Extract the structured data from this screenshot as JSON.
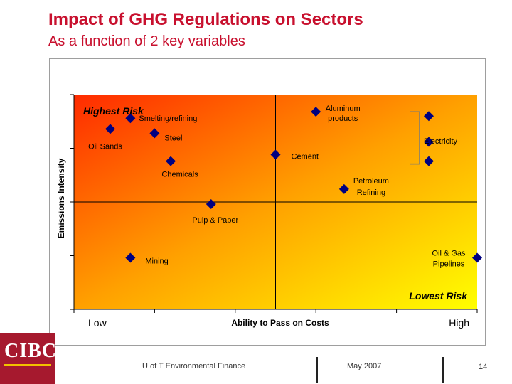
{
  "slide": {
    "title": "Impact of GHG Regulations on Sectors",
    "subtitle": "As a function of 2 key variables"
  },
  "footer": {
    "logo": "CIBC",
    "text": "U of T Environmental Finance",
    "date": "May 2007",
    "page": "14"
  },
  "colors": {
    "title": "#c8102e",
    "marker": "#000080",
    "gradient_start": "#ff2a00",
    "gradient_end": "#ffff00",
    "logo_bg": "#a6192e"
  },
  "chart_data": {
    "type": "scatter",
    "title": "",
    "xlabel": "Ability to Pass on Costs",
    "ylabel": "Emissions Intensity",
    "x_tick_labels": [
      "Low",
      "High"
    ],
    "xlim": [
      0,
      10
    ],
    "ylim": [
      0,
      10
    ],
    "quadrant_split": {
      "x": 5,
      "y": 5
    },
    "region_labels": [
      {
        "text": "Highest Risk",
        "corner": "top-left"
      },
      {
        "text": "Lowest Risk",
        "corner": "bottom-right"
      }
    ],
    "bracket_label": "Electricity",
    "points": [
      {
        "name": "Smelting/refining",
        "x": 1.4,
        "y": 8.9
      },
      {
        "name": "Oil Sands",
        "x": 0.9,
        "y": 8.4
      },
      {
        "name": "Steel",
        "x": 2.0,
        "y": 8.2
      },
      {
        "name": "Chemicals",
        "x": 2.4,
        "y": 6.9
      },
      {
        "name": "Cement",
        "x": 5.0,
        "y": 7.2
      },
      {
        "name": "Aluminum products",
        "x": 6.0,
        "y": 9.2
      },
      {
        "name": "Petroleum Refining",
        "x": 6.7,
        "y": 5.6
      },
      {
        "name": "Electricity",
        "x": 8.8,
        "y": 9.0
      },
      {
        "name": "Electricity",
        "x": 8.8,
        "y": 7.8
      },
      {
        "name": "Electricity",
        "x": 8.8,
        "y": 6.9
      },
      {
        "name": "Pulp & Paper",
        "x": 3.4,
        "y": 4.9
      },
      {
        "name": "Mining",
        "x": 1.4,
        "y": 2.4
      },
      {
        "name": "Oil & Gas Pipelines",
        "x": 10.0,
        "y": 2.4
      }
    ]
  }
}
